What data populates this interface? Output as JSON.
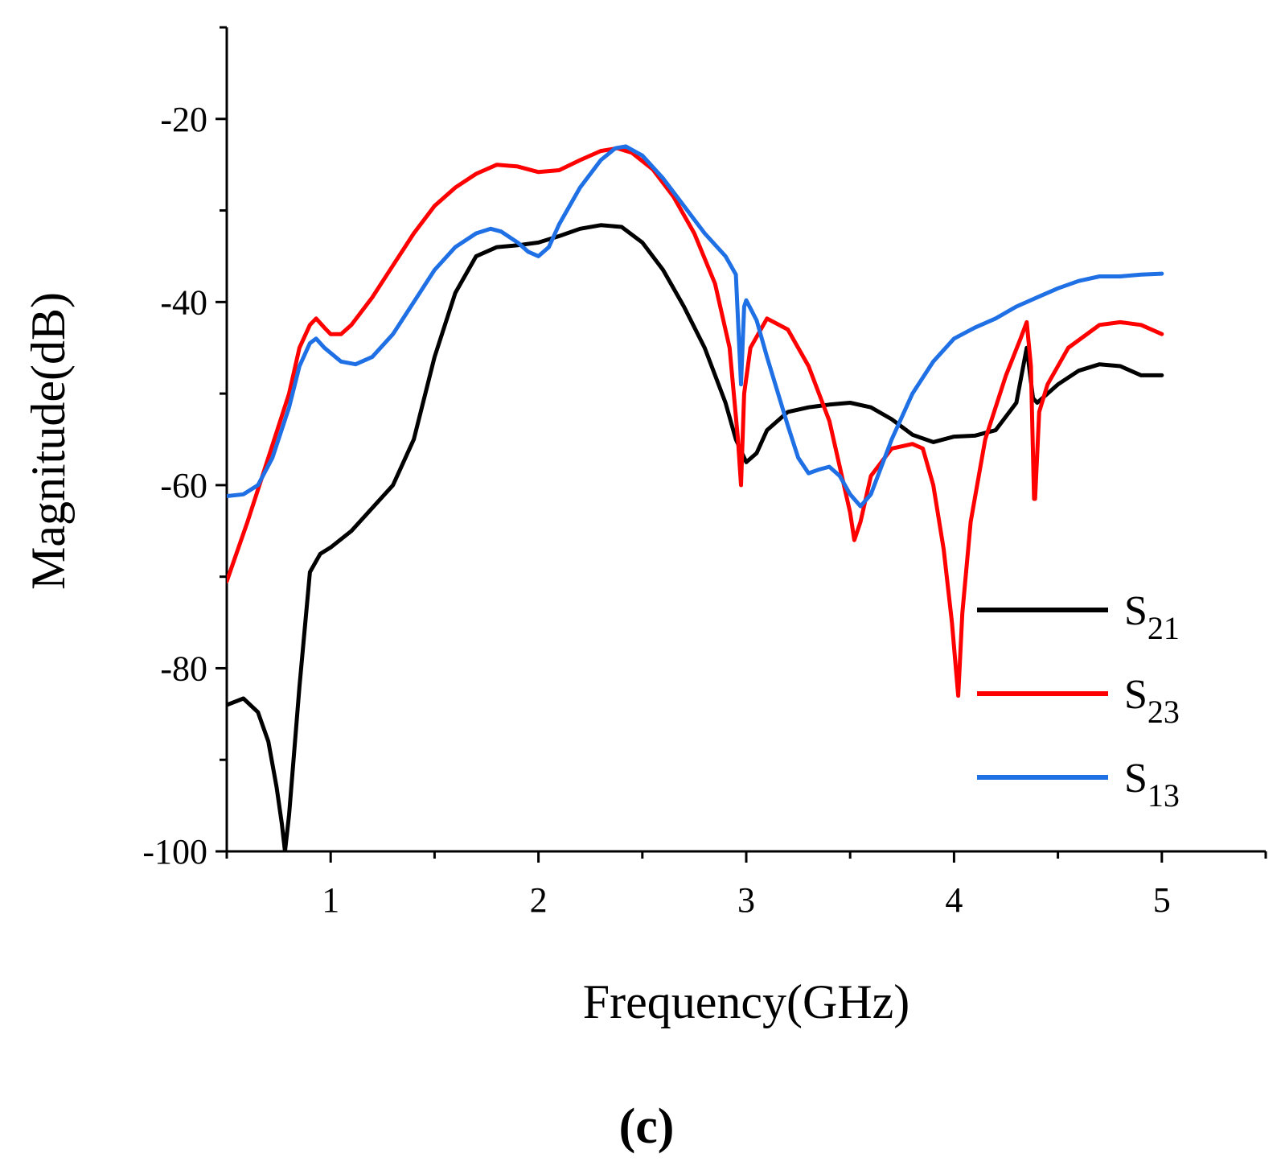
{
  "chart_data": {
    "type": "line",
    "title": "",
    "xlabel": "Frequency(GHz)",
    "ylabel": "Magnitude(dB)",
    "xlim": [
      0.5,
      5.5
    ],
    "ylim": [
      -100,
      -10
    ],
    "x_ticks": [
      1,
      2,
      3,
      4,
      5
    ],
    "x_tick_labels": [
      "1",
      "2",
      "3",
      "4",
      "5"
    ],
    "y_ticks": [
      -100,
      -80,
      -60,
      -40,
      -20
    ],
    "y_tick_labels": [
      "-100",
      "-80",
      "-60",
      "-40",
      "-20"
    ],
    "grid": false,
    "legend_position": "bottom-right",
    "panel_label": "(c)",
    "series": [
      {
        "name": "S21",
        "name_main": "S",
        "name_sub": "21",
        "color": "#000000",
        "points": [
          [
            0.5,
            -84
          ],
          [
            0.58,
            -83.3
          ],
          [
            0.65,
            -84.8
          ],
          [
            0.7,
            -88
          ],
          [
            0.74,
            -93
          ],
          [
            0.765,
            -97
          ],
          [
            0.78,
            -100
          ],
          [
            0.8,
            -96
          ],
          [
            0.85,
            -82
          ],
          [
            0.9,
            -69.5
          ],
          [
            0.95,
            -67.5
          ],
          [
            1.0,
            -66.8
          ],
          [
            1.1,
            -65
          ],
          [
            1.2,
            -62.5
          ],
          [
            1.3,
            -60
          ],
          [
            1.4,
            -55
          ],
          [
            1.5,
            -46
          ],
          [
            1.6,
            -39
          ],
          [
            1.7,
            -35
          ],
          [
            1.8,
            -34
          ],
          [
            1.9,
            -33.8
          ],
          [
            2.0,
            -33.5
          ],
          [
            2.1,
            -32.8
          ],
          [
            2.2,
            -32
          ],
          [
            2.3,
            -31.6
          ],
          [
            2.4,
            -31.8
          ],
          [
            2.5,
            -33.5
          ],
          [
            2.6,
            -36.5
          ],
          [
            2.7,
            -40.5
          ],
          [
            2.8,
            -45
          ],
          [
            2.9,
            -51
          ],
          [
            2.95,
            -55
          ],
          [
            3.0,
            -57.5
          ],
          [
            3.05,
            -56.5
          ],
          [
            3.1,
            -54
          ],
          [
            3.2,
            -52
          ],
          [
            3.3,
            -51.5
          ],
          [
            3.4,
            -51.2
          ],
          [
            3.5,
            -51
          ],
          [
            3.6,
            -51.5
          ],
          [
            3.7,
            -52.8
          ],
          [
            3.8,
            -54.5
          ],
          [
            3.9,
            -55.3
          ],
          [
            4.0,
            -54.7
          ],
          [
            4.1,
            -54.6
          ],
          [
            4.2,
            -54
          ],
          [
            4.3,
            -51
          ],
          [
            4.35,
            -45
          ],
          [
            4.38,
            -50.5
          ],
          [
            4.4,
            -51
          ],
          [
            4.5,
            -49
          ],
          [
            4.6,
            -47.5
          ],
          [
            4.7,
            -46.8
          ],
          [
            4.8,
            -47
          ],
          [
            4.9,
            -48
          ],
          [
            5.0,
            -48
          ]
        ]
      },
      {
        "name": "S23",
        "name_main": "S",
        "name_sub": "23",
        "color": "#ff0000",
        "points": [
          [
            0.5,
            -70.5
          ],
          [
            0.6,
            -64
          ],
          [
            0.7,
            -57
          ],
          [
            0.8,
            -50
          ],
          [
            0.85,
            -45
          ],
          [
            0.9,
            -42.5
          ],
          [
            0.93,
            -41.8
          ],
          [
            0.97,
            -42.8
          ],
          [
            1.0,
            -43.5
          ],
          [
            1.05,
            -43.5
          ],
          [
            1.1,
            -42.5
          ],
          [
            1.2,
            -39.5
          ],
          [
            1.3,
            -36
          ],
          [
            1.4,
            -32.5
          ],
          [
            1.5,
            -29.5
          ],
          [
            1.6,
            -27.5
          ],
          [
            1.7,
            -26
          ],
          [
            1.8,
            -25
          ],
          [
            1.9,
            -25.2
          ],
          [
            2.0,
            -25.8
          ],
          [
            2.1,
            -25.6
          ],
          [
            2.2,
            -24.5
          ],
          [
            2.3,
            -23.5
          ],
          [
            2.38,
            -23.2
          ],
          [
            2.45,
            -23.7
          ],
          [
            2.55,
            -25.5
          ],
          [
            2.65,
            -28.5
          ],
          [
            2.75,
            -32.5
          ],
          [
            2.85,
            -38
          ],
          [
            2.92,
            -45
          ],
          [
            2.96,
            -55
          ],
          [
            2.975,
            -60
          ],
          [
            2.99,
            -50
          ],
          [
            3.02,
            -45
          ],
          [
            3.1,
            -41.8
          ],
          [
            3.2,
            -43
          ],
          [
            3.3,
            -47
          ],
          [
            3.4,
            -53
          ],
          [
            3.45,
            -58
          ],
          [
            3.5,
            -63
          ],
          [
            3.52,
            -66
          ],
          [
            3.55,
            -64
          ],
          [
            3.6,
            -59
          ],
          [
            3.7,
            -56
          ],
          [
            3.8,
            -55.5
          ],
          [
            3.85,
            -56
          ],
          [
            3.9,
            -60
          ],
          [
            3.95,
            -67
          ],
          [
            3.99,
            -75
          ],
          [
            4.02,
            -83
          ],
          [
            4.04,
            -74
          ],
          [
            4.08,
            -64
          ],
          [
            4.15,
            -55
          ],
          [
            4.25,
            -48
          ],
          [
            4.32,
            -44
          ],
          [
            4.35,
            -42.2
          ],
          [
            4.37,
            -47
          ],
          [
            4.385,
            -61.5
          ],
          [
            4.39,
            -61.5
          ],
          [
            4.41,
            -52
          ],
          [
            4.45,
            -49
          ],
          [
            4.55,
            -45
          ],
          [
            4.7,
            -42.5
          ],
          [
            4.8,
            -42.2
          ],
          [
            4.9,
            -42.5
          ],
          [
            5.0,
            -43.5
          ]
        ]
      },
      {
        "name": "S13",
        "name_main": "S",
        "name_sub": "13",
        "color": "#1f6fe5",
        "points": [
          [
            0.5,
            -61.2
          ],
          [
            0.58,
            -61
          ],
          [
            0.65,
            -60
          ],
          [
            0.72,
            -57
          ],
          [
            0.8,
            -51.5
          ],
          [
            0.85,
            -47
          ],
          [
            0.9,
            -44.5
          ],
          [
            0.93,
            -44
          ],
          [
            0.97,
            -45
          ],
          [
            1.05,
            -46.5
          ],
          [
            1.12,
            -46.8
          ],
          [
            1.2,
            -46
          ],
          [
            1.3,
            -43.5
          ],
          [
            1.4,
            -40
          ],
          [
            1.5,
            -36.5
          ],
          [
            1.6,
            -34
          ],
          [
            1.7,
            -32.5
          ],
          [
            1.77,
            -32
          ],
          [
            1.82,
            -32.3
          ],
          [
            1.9,
            -33.5
          ],
          [
            1.95,
            -34.5
          ],
          [
            2.0,
            -35
          ],
          [
            2.05,
            -34
          ],
          [
            2.1,
            -31.5
          ],
          [
            2.2,
            -27.5
          ],
          [
            2.3,
            -24.5
          ],
          [
            2.37,
            -23.2
          ],
          [
            2.42,
            -23
          ],
          [
            2.5,
            -24
          ],
          [
            2.6,
            -26.5
          ],
          [
            2.7,
            -29.5
          ],
          [
            2.8,
            -32.5
          ],
          [
            2.9,
            -35
          ],
          [
            2.95,
            -37
          ],
          [
            2.975,
            -49
          ],
          [
            2.99,
            -40.5
          ],
          [
            3.0,
            -39.8
          ],
          [
            3.05,
            -42
          ],
          [
            3.1,
            -46
          ],
          [
            3.2,
            -53.5
          ],
          [
            3.25,
            -57
          ],
          [
            3.3,
            -58.7
          ],
          [
            3.35,
            -58.3
          ],
          [
            3.4,
            -58
          ],
          [
            3.45,
            -59
          ],
          [
            3.5,
            -61
          ],
          [
            3.55,
            -62.3
          ],
          [
            3.6,
            -61
          ],
          [
            3.7,
            -55
          ],
          [
            3.8,
            -50
          ],
          [
            3.9,
            -46.5
          ],
          [
            4.0,
            -44
          ],
          [
            4.1,
            -42.8
          ],
          [
            4.2,
            -41.8
          ],
          [
            4.3,
            -40.5
          ],
          [
            4.4,
            -39.5
          ],
          [
            4.5,
            -38.5
          ],
          [
            4.6,
            -37.7
          ],
          [
            4.7,
            -37.2
          ],
          [
            4.8,
            -37.2
          ],
          [
            4.9,
            -37
          ],
          [
            5.0,
            -36.9
          ]
        ]
      }
    ]
  }
}
